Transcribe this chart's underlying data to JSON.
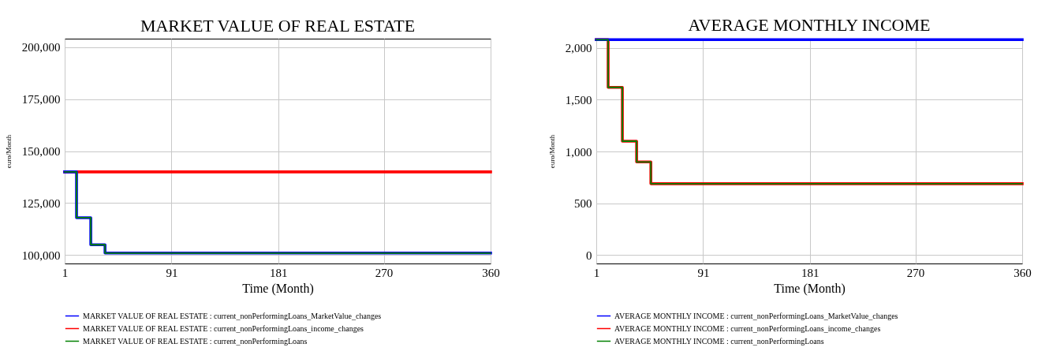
{
  "chart_data": [
    {
      "type": "step",
      "title": "MARKET VALUE OF REAL ESTATE",
      "xlabel": "Time (Month)",
      "ylabel": "euro/Month",
      "xlim": [
        1,
        360
      ],
      "xticks": [
        1,
        91,
        181,
        270,
        360
      ],
      "ylim": [
        96000,
        204000
      ],
      "yticks": [
        {
          "value": 100000,
          "label": "100,000"
        },
        {
          "value": 125000,
          "label": "125,000"
        },
        {
          "value": 150000,
          "label": "150,000"
        },
        {
          "value": 175000,
          "label": "175,000"
        },
        {
          "value": 200000,
          "label": "200,000"
        }
      ],
      "grid": true,
      "legend": "bottom",
      "series": [
        {
          "name": "MARKET VALUE OF REAL ESTATE : current_nonPerformingLoans_MarketValue_changes",
          "color": "#0000ff",
          "x": [
            1,
            11,
            23,
            35,
            360
          ],
          "values": [
            140000,
            118000,
            105000,
            101000,
            101000
          ]
        },
        {
          "name": "MARKET VALUE OF REAL ESTATE : current_nonPerformingLoans_income_changes",
          "color": "#ff0000",
          "x": [
            1,
            360
          ],
          "values": [
            140000,
            140000
          ]
        },
        {
          "name": "MARKET VALUE OF REAL ESTATE : current_nonPerformingLoans",
          "color": "#008000",
          "x": [
            1,
            11,
            23,
            35,
            360
          ],
          "values": [
            140000,
            118000,
            105000,
            101000,
            101000
          ]
        }
      ]
    },
    {
      "type": "step",
      "title": "AVERAGE MONTHLY INCOME",
      "xlabel": "Time (Month)",
      "ylabel": "euro/Month",
      "xlim": [
        1,
        360
      ],
      "xticks": [
        1,
        91,
        181,
        270,
        360
      ],
      "ylim": [
        -80,
        2090
      ],
      "yticks": [
        0,
        500,
        {
          "value": 1000,
          "label": "1,000"
        },
        {
          "value": 1500,
          "label": "1,500"
        },
        {
          "value": 2000,
          "label": "2,000"
        }
      ],
      "grid": true,
      "legend": "bottom",
      "series": [
        {
          "name": "AVERAGE MONTHLY INCOME : current_nonPerformingLoans_MarketValue_changes",
          "color": "#0000ff",
          "x": [
            1,
            360
          ],
          "values": [
            2080,
            2080
          ]
        },
        {
          "name": "AVERAGE MONTHLY INCOME : current_nonPerformingLoans_income_changes",
          "color": "#ff0000",
          "x": [
            1,
            11,
            23,
            35,
            47,
            360
          ],
          "values": [
            2080,
            1620,
            1100,
            900,
            690,
            690
          ]
        },
        {
          "name": "AVERAGE MONTHLY INCOME : current_nonPerformingLoans",
          "color": "#008000",
          "x": [
            1,
            11,
            23,
            35,
            47,
            360
          ],
          "values": [
            2080,
            1620,
            1100,
            900,
            690,
            690
          ]
        }
      ]
    }
  ]
}
